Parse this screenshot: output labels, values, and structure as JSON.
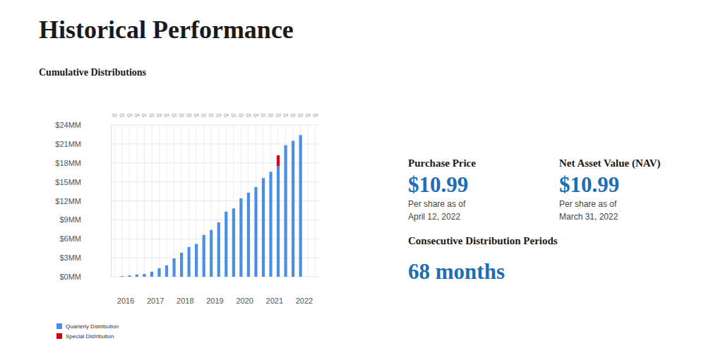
{
  "header": {
    "title": "Historical Performance",
    "subtitle": "Cumulative Distributions"
  },
  "chart_data": {
    "type": "bar",
    "stacked": true,
    "grid": true,
    "legend": "bottom-left",
    "categories": [
      "Q1",
      "Q2",
      "Q3",
      "Q4",
      "Q1",
      "Q2",
      "Q3",
      "Q4",
      "Q1",
      "Q2",
      "Q3",
      "Q4",
      "Q1",
      "Q2",
      "Q3",
      "Q4",
      "Q1",
      "Q2",
      "Q3",
      "Q4",
      "Q1",
      "Q2",
      "Q3",
      "Q4",
      "Q1",
      "Q2",
      "Q3",
      "Q4"
    ],
    "years": [
      "2016",
      "2017",
      "2018",
      "2019",
      "2020",
      "2021",
      "2022"
    ],
    "ylim": [
      0,
      24
    ],
    "yticks": [
      {
        "value": 0,
        "label": "$0MM"
      },
      {
        "value": 3,
        "label": "$3MM"
      },
      {
        "value": 6,
        "label": "$6MM"
      },
      {
        "value": 9,
        "label": "$9MM"
      },
      {
        "value": 12,
        "label": "$12MM"
      },
      {
        "value": 15,
        "label": "$15MM"
      },
      {
        "value": 18,
        "label": "$18MM"
      },
      {
        "value": 21,
        "label": "$21MM"
      },
      {
        "value": 24,
        "label": "$24MM"
      }
    ],
    "series": [
      {
        "name": "Quarterly Distribution",
        "color": "#4a90e2",
        "values": [
          null,
          0.1,
          0.2,
          0.35,
          0.45,
          0.8,
          1.35,
          1.8,
          2.9,
          3.8,
          4.7,
          5.2,
          6.6,
          7.4,
          8.6,
          10.3,
          10.8,
          12.4,
          13.3,
          14.2,
          15.6,
          16.6,
          17.5,
          20.8,
          21.5,
          22.4,
          null,
          null
        ]
      },
      {
        "name": "Special Distribution",
        "color": "#d0021b",
        "values": [
          null,
          null,
          null,
          null,
          null,
          null,
          null,
          null,
          null,
          null,
          null,
          null,
          null,
          null,
          null,
          null,
          null,
          null,
          null,
          null,
          null,
          null,
          1.7,
          null,
          null,
          null,
          null,
          null
        ]
      }
    ]
  },
  "panel": {
    "purchase_price": {
      "label": "Purchase Price",
      "value": "$10.99",
      "note": "Per share as of",
      "date": "April 12, 2022"
    },
    "nav": {
      "label": "Net Asset Value (NAV)",
      "value": "$10.99",
      "note": "Per share as of",
      "date": "March 31, 2022"
    },
    "periods": {
      "label": "Consecutive Distribution Periods",
      "value": "68 months"
    }
  }
}
